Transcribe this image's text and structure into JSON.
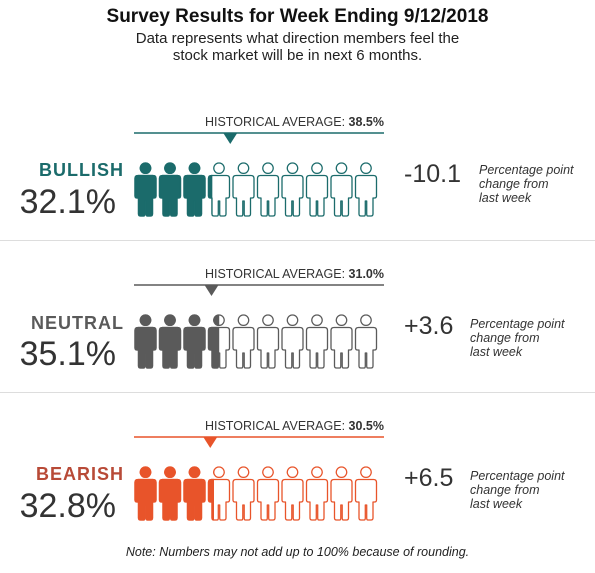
{
  "title": "Survey Results for Week Ending 9/12/2018",
  "subtitle_lines": [
    "Data represents what direction members feel the",
    "stock market will be in next 6 months."
  ],
  "note": "Note: Numbers may not add up to 100% because of rounding.",
  "chart_data": {
    "type": "pictograph",
    "icon": "person-icon",
    "icons_per_row": 10,
    "rows": [
      {
        "label": "BULLISH",
        "value": 32.1,
        "value_label": "32.1%",
        "historical_label": "HISTORICAL AVERAGE:",
        "historical_value": 38.5,
        "historical_value_label": "38.5%",
        "change_label": "-10.1",
        "change_note": [
          "Percentage point",
          "change from",
          "last week"
        ],
        "color": "#1b6b6b"
      },
      {
        "label": "NEUTRAL",
        "value": 35.1,
        "value_label": "35.1%",
        "historical_label": "HISTORICAL AVERAGE:",
        "historical_value": 31.0,
        "historical_value_label": "31.0%",
        "change_label": "+3.6",
        "change_note": [
          "Percentage point",
          "change from",
          "last week"
        ],
        "color": "#5a5a5a"
      },
      {
        "label": "BEARISH",
        "value": 32.8,
        "value_label": "32.8%",
        "historical_label": "HISTORICAL AVERAGE:",
        "historical_value": 30.5,
        "historical_value_label": "30.5%",
        "change_label": "+6.5",
        "change_note": [
          "Percentage point",
          "change from",
          "last week"
        ],
        "color": "#e8542a",
        "label_color": "#b84a37"
      }
    ]
  }
}
